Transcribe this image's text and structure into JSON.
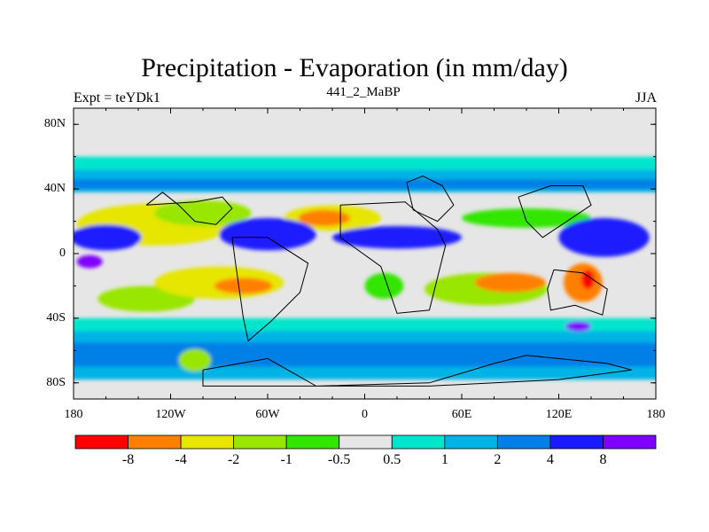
{
  "chart_data": {
    "type": "heatmap",
    "title": "Precipitation - Evaporation (in mm/day)",
    "subtitle_left": "Expt = teYDk1",
    "subtitle_center": "441_2_MaBP",
    "subtitle_right": "JJA",
    "x_ticks": [
      "180",
      "120W",
      "60W",
      "0",
      "60E",
      "120E",
      "180"
    ],
    "y_ticks": [
      "80N",
      "40N",
      "0",
      "40S",
      "80S"
    ],
    "xlim": [
      -180,
      180
    ],
    "ylim": [
      -90,
      90
    ],
    "colorbar": {
      "labels": [
        "-8",
        "-4",
        "-2",
        "-1",
        "-0.5",
        "0.5",
        "1",
        "2",
        "4",
        "8"
      ],
      "colors": [
        "#ff0000",
        "#ff8000",
        "#e6e600",
        "#99e600",
        "#33e600",
        "#e6e6e6",
        "#00e6cc",
        "#00b3e6",
        "#0080e6",
        "#1a1aff",
        "#8000ff"
      ]
    },
    "fill_colors": {
      "neutral": "#e6e6e6",
      "red": "#ff0000",
      "orange": "#ff8000",
      "yellow": "#e6e600",
      "lightgreen": "#99e600",
      "green": "#33e600",
      "cyan": "#00e6cc",
      "skyblue": "#00b3e6",
      "blue": "#0080e6",
      "darkblue": "#1a1aff",
      "purple": "#8000ff"
    },
    "bands": [
      {
        "level": "skyblue",
        "lat_range": [
          38,
          52
        ]
      },
      {
        "level": "blue",
        "lat_range": [
          40,
          46
        ]
      },
      {
        "level": "cyan",
        "lat_range": [
          52,
          60
        ]
      },
      {
        "level": "skyblue",
        "lat_range": [
          -78,
          -42
        ]
      },
      {
        "level": "cyan",
        "lat_range": [
          -48,
          -40
        ]
      },
      {
        "level": "blue",
        "lat_range": [
          -70,
          -55
        ]
      }
    ],
    "features": [
      {
        "level": "yellow",
        "center": [
          -130,
          18
        ],
        "size": [
          48,
          13
        ]
      },
      {
        "level": "lightgreen",
        "center": [
          -100,
          25
        ],
        "size": [
          30,
          8
        ]
      },
      {
        "level": "yellow",
        "center": [
          -20,
          22
        ],
        "size": [
          30,
          8
        ]
      },
      {
        "level": "orange",
        "center": [
          -25,
          22
        ],
        "size": [
          16,
          5
        ]
      },
      {
        "level": "green",
        "center": [
          100,
          22
        ],
        "size": [
          40,
          6
        ]
      },
      {
        "level": "darkblue",
        "center": [
          -160,
          10
        ],
        "size": [
          22,
          8
        ]
      },
      {
        "level": "darkblue",
        "center": [
          -60,
          12
        ],
        "size": [
          30,
          10
        ]
      },
      {
        "level": "darkblue",
        "center": [
          20,
          10
        ],
        "size": [
          40,
          7
        ]
      },
      {
        "level": "darkblue",
        "center": [
          148,
          10
        ],
        "size": [
          28,
          12
        ]
      },
      {
        "level": "purple",
        "center": [
          -170,
          -5
        ],
        "size": [
          8,
          4
        ]
      },
      {
        "level": "lightgreen",
        "center": [
          -135,
          -28
        ],
        "size": [
          30,
          8
        ]
      },
      {
        "level": "yellow",
        "center": [
          -90,
          -18
        ],
        "size": [
          40,
          10
        ]
      },
      {
        "level": "orange",
        "center": [
          -75,
          -20
        ],
        "size": [
          18,
          5
        ]
      },
      {
        "level": "lightgreen",
        "center": [
          75,
          -22
        ],
        "size": [
          38,
          10
        ]
      },
      {
        "level": "orange",
        "center": [
          90,
          -18
        ],
        "size": [
          22,
          6
        ]
      },
      {
        "level": "orange",
        "center": [
          135,
          -18
        ],
        "size": [
          12,
          12
        ]
      },
      {
        "level": "red",
        "center": [
          138,
          -16
        ],
        "size": [
          4,
          6
        ]
      },
      {
        "level": "green",
        "center": [
          12,
          -20
        ],
        "size": [
          12,
          8
        ]
      },
      {
        "level": "lightgreen",
        "center": [
          -105,
          -66
        ],
        "size": [
          10,
          7
        ]
      },
      {
        "level": "purple",
        "center": [
          132,
          -45
        ],
        "size": [
          8,
          3
        ]
      }
    ],
    "land_outlines": [
      [
        [
          -135,
          30
        ],
        [
          -105,
          32
        ],
        [
          -88,
          35
        ],
        [
          -82,
          28
        ],
        [
          -92,
          18
        ],
        [
          -105,
          20
        ],
        [
          -115,
          30
        ],
        [
          -125,
          38
        ],
        [
          -135,
          30
        ]
      ],
      [
        [
          -82,
          10
        ],
        [
          -60,
          10
        ],
        [
          -35,
          -6
        ],
        [
          -40,
          -24
        ],
        [
          -58,
          -42
        ],
        [
          -72,
          -54
        ],
        [
          -75,
          -40
        ],
        [
          -80,
          -5
        ],
        [
          -82,
          10
        ]
      ],
      [
        [
          -15,
          30
        ],
        [
          25,
          32
        ],
        [
          45,
          15
        ],
        [
          50,
          5
        ],
        [
          40,
          -35
        ],
        [
          20,
          -37
        ],
        [
          10,
          -8
        ],
        [
          -15,
          10
        ],
        [
          -15,
          30
        ]
      ],
      [
        [
          26,
          44
        ],
        [
          36,
          48
        ],
        [
          48,
          42
        ],
        [
          55,
          30
        ],
        [
          45,
          20
        ],
        [
          30,
          27
        ],
        [
          26,
          44
        ]
      ],
      [
        [
          95,
          35
        ],
        [
          115,
          42
        ],
        [
          135,
          42
        ],
        [
          140,
          30
        ],
        [
          125,
          20
        ],
        [
          110,
          10
        ],
        [
          100,
          20
        ],
        [
          95,
          35
        ]
      ],
      [
        [
          117,
          -10
        ],
        [
          135,
          -12
        ],
        [
          150,
          -22
        ],
        [
          147,
          -38
        ],
        [
          130,
          -32
        ],
        [
          115,
          -35
        ],
        [
          113,
          -22
        ],
        [
          117,
          -10
        ]
      ],
      [
        [
          -100,
          -72
        ],
        [
          -60,
          -65
        ],
        [
          -30,
          -82
        ],
        [
          40,
          -80
        ],
        [
          80,
          -68
        ],
        [
          100,
          -63
        ],
        [
          150,
          -68
        ],
        [
          165,
          -72
        ],
        [
          120,
          -78
        ],
        [
          40,
          -82
        ],
        [
          -30,
          -82
        ],
        [
          -100,
          -82
        ],
        [
          -100,
          -72
        ]
      ]
    ]
  }
}
